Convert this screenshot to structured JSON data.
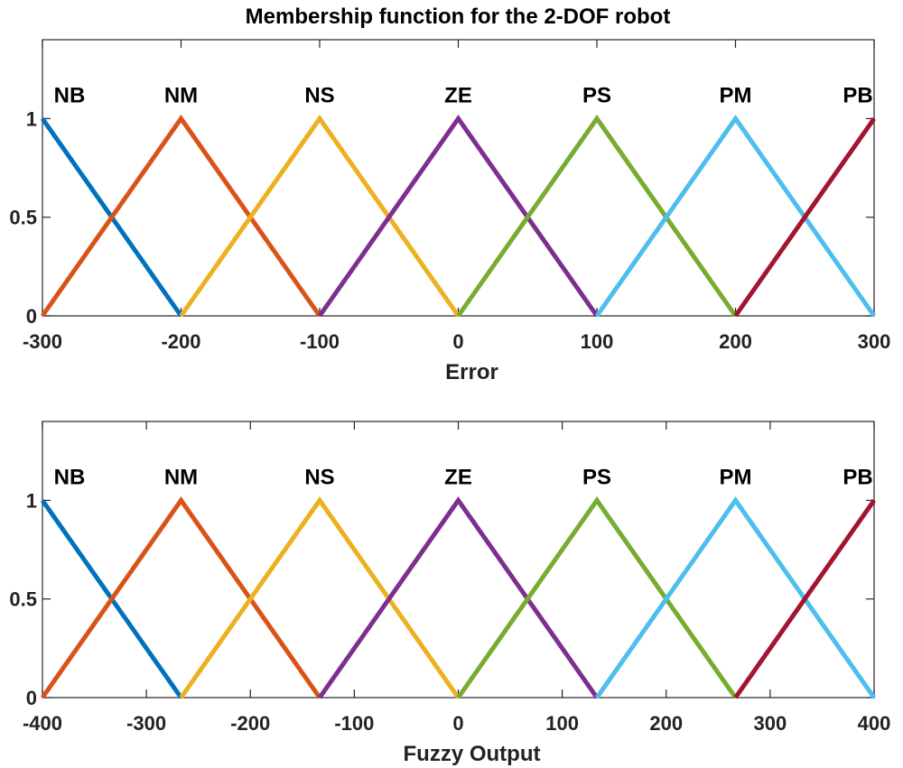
{
  "chart_data": [
    {
      "type": "line",
      "title": "Membership function for the 2-DOF robot",
      "xlabel": "Error",
      "ylabel": "",
      "xlim": [
        -300,
        300
      ],
      "ylim": [
        0,
        1.4
      ],
      "xticks": [
        "-300",
        "-200",
        "-100",
        "0",
        "100",
        "200",
        "300"
      ],
      "yticks": [
        "0",
        "0.5",
        "1"
      ],
      "grid": false,
      "series": [
        {
          "name": "NB",
          "color": "#0072BD",
          "x": [
            -300,
            -200
          ],
          "y": [
            1,
            0
          ]
        },
        {
          "name": "NM",
          "color": "#D95319",
          "x": [
            -300,
            -200,
            -100
          ],
          "y": [
            0,
            1,
            0
          ]
        },
        {
          "name": "NS",
          "color": "#EDB120",
          "x": [
            -200,
            -100,
            0
          ],
          "y": [
            0,
            1,
            0
          ]
        },
        {
          "name": "ZE",
          "color": "#7E2F8E",
          "x": [
            -100,
            0,
            100
          ],
          "y": [
            0,
            1,
            0
          ]
        },
        {
          "name": "PS",
          "color": "#77AC30",
          "x": [
            0,
            100,
            200
          ],
          "y": [
            0,
            1,
            0
          ]
        },
        {
          "name": "PM",
          "color": "#4DBEEE",
          "x": [
            100,
            200,
            300
          ],
          "y": [
            0,
            1,
            0
          ]
        },
        {
          "name": "PB",
          "color": "#A2142F",
          "x": [
            200,
            300
          ],
          "y": [
            0,
            1
          ]
        }
      ]
    },
    {
      "type": "line",
      "title": "",
      "xlabel": "Fuzzy Output",
      "ylabel": "",
      "xlim": [
        -400,
        400
      ],
      "ylim": [
        0,
        1.4
      ],
      "xticks": [
        "-400",
        "-300",
        "-200",
        "-100",
        "0",
        "100",
        "200",
        "300",
        "400"
      ],
      "yticks": [
        "0",
        "0.5",
        "1"
      ],
      "grid": false,
      "series": [
        {
          "name": "NB",
          "color": "#0072BD",
          "x": [
            -400,
            -266.67
          ],
          "y": [
            1,
            0
          ]
        },
        {
          "name": "NM",
          "color": "#D95319",
          "x": [
            -400,
            -266.67,
            -133.33
          ],
          "y": [
            0,
            1,
            0
          ]
        },
        {
          "name": "NS",
          "color": "#EDB120",
          "x": [
            -266.67,
            -133.33,
            0
          ],
          "y": [
            0,
            1,
            0
          ]
        },
        {
          "name": "ZE",
          "color": "#7E2F8E",
          "x": [
            -133.33,
            0,
            133.33
          ],
          "y": [
            0,
            1,
            0
          ]
        },
        {
          "name": "PS",
          "color": "#77AC30",
          "x": [
            0,
            133.33,
            266.67
          ],
          "y": [
            0,
            1,
            0
          ]
        },
        {
          "name": "PM",
          "color": "#4DBEEE",
          "x": [
            133.33,
            266.67,
            400
          ],
          "y": [
            0,
            1,
            0
          ]
        },
        {
          "name": "PB",
          "color": "#A2142F",
          "x": [
            266.67,
            400
          ],
          "y": [
            0,
            1
          ]
        }
      ]
    }
  ]
}
